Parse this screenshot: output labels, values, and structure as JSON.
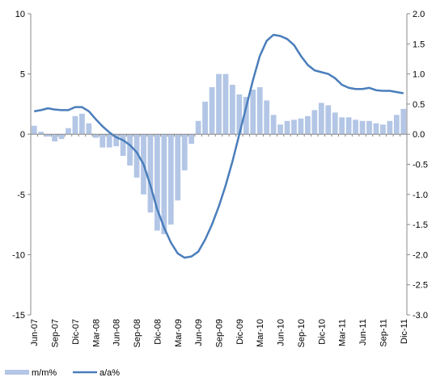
{
  "chart_data": {
    "type": "bar-line",
    "categories": [
      "Jun-07",
      null,
      null,
      "Sep-07",
      null,
      null,
      "Dic-07",
      null,
      null,
      "Mar-08",
      null,
      null,
      "Jun-08",
      null,
      null,
      "Sep-08",
      null,
      null,
      "Dic-08",
      null,
      null,
      "Mar-09",
      null,
      null,
      "Jun-09",
      null,
      null,
      "Sep-09",
      null,
      null,
      "Dic-09",
      null,
      null,
      "Mar-10",
      null,
      null,
      "Jun-10",
      null,
      null,
      "Sep-10",
      null,
      null,
      "Dic-10",
      null,
      null,
      "Mar-11",
      null,
      null,
      "Jun-11",
      null,
      null,
      "Sep-11",
      null,
      null,
      "Dic-11"
    ],
    "series": [
      {
        "name": "m/m%",
        "type": "bar",
        "color": "#b3c6e6",
        "values": [
          0.7,
          0.2,
          -0.2,
          -0.6,
          -0.4,
          0.5,
          1.5,
          1.7,
          0.9,
          -0.3,
          -1.1,
          -1.1,
          -1.0,
          -1.8,
          -2.6,
          -3.6,
          -5.0,
          -6.5,
          -8.0,
          -8.3,
          -7.5,
          -5.5,
          -3.0,
          -0.8,
          1.1,
          2.7,
          3.9,
          5.0,
          5.0,
          4.1,
          3.3,
          3.1,
          3.7,
          3.9,
          2.8,
          1.6,
          0.8,
          1.1,
          1.2,
          1.3,
          1.5,
          2.0,
          2.6,
          2.4,
          1.8,
          1.4,
          1.4,
          1.2,
          1.1,
          1.1,
          0.9,
          0.8,
          1.1,
          1.6,
          2.1
        ]
      },
      {
        "name": "a/a%",
        "type": "line",
        "axis": "y2",
        "color": "#4a7ebb",
        "values": [
          0.38,
          0.4,
          0.43,
          0.41,
          0.4,
          0.4,
          0.45,
          0.45,
          0.38,
          0.25,
          0.13,
          0.03,
          -0.05,
          -0.1,
          -0.18,
          -0.3,
          -0.5,
          -0.85,
          -1.25,
          -1.55,
          -1.8,
          -1.98,
          -2.05,
          -2.03,
          -1.95,
          -1.75,
          -1.5,
          -1.2,
          -0.85,
          -0.45,
          0.0,
          0.45,
          0.9,
          1.3,
          1.55,
          1.65,
          1.63,
          1.58,
          1.48,
          1.3,
          1.15,
          1.06,
          1.03,
          1.0,
          0.93,
          0.82,
          0.77,
          0.75,
          0.75,
          0.77,
          0.73,
          0.72,
          0.72,
          0.7,
          0.68
        ]
      }
    ],
    "ylim": [
      -15,
      10
    ],
    "yticks": [
      -15,
      -10,
      -5,
      0,
      5,
      10
    ],
    "y2lim": [
      -3,
      2
    ],
    "y2ticks": [
      {
        "value": -3,
        "label": "-3.0"
      },
      -2.5,
      {
        "value": -2,
        "label": "-2.0"
      },
      -1.5,
      {
        "value": -1,
        "label": "-1.0"
      },
      -0.5,
      {
        "value": 0,
        "label": "0.0"
      },
      0.5,
      {
        "value": 1,
        "label": "1.0"
      },
      1.5,
      {
        "value": 2,
        "label": "2.0"
      }
    ],
    "legend": "bottom-left"
  }
}
